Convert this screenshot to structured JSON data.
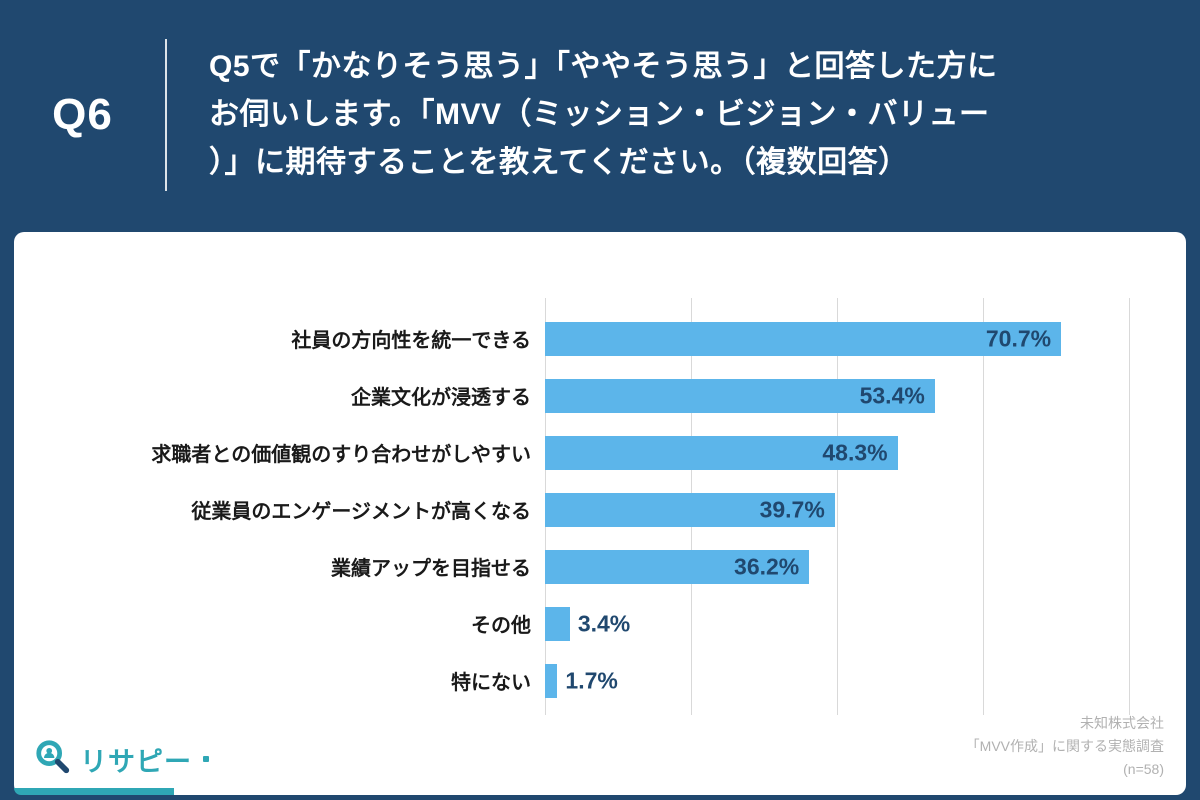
{
  "header": {
    "question_number": "Q6",
    "question_lines": [
      "Q5で「かなりそう思う」「ややそう思う」と回答した方に",
      "お伺いします。「MVV（ミッション・ビジョン・バリュー",
      "）」に期待することを教えてください。（複数回答）"
    ]
  },
  "chart_data": {
    "type": "bar",
    "orientation": "horizontal",
    "title": "",
    "xlabel": "",
    "ylabel": "",
    "categories": [
      "社員の方向性を統一できる",
      "企業文化が浸透する",
      "求職者との価値観のすり合わせがしやすい",
      "従業員のエンゲージメントが高くなる",
      "業績アップを目指せる",
      "その他",
      "特にない"
    ],
    "values": [
      70.7,
      53.4,
      48.3,
      39.7,
      36.2,
      3.4,
      1.7
    ],
    "value_labels": [
      "70.7%",
      "53.4%",
      "48.3%",
      "39.7%",
      "36.2%",
      "3.4%",
      "1.7%"
    ],
    "xlim": [
      0,
      80
    ],
    "gridlines_percent": [
      0,
      20,
      40,
      60,
      80
    ],
    "grid": true,
    "legend": false,
    "bar_color": "#5CB5EA",
    "value_color": "#20486F"
  },
  "footer": {
    "source_lines": [
      "未知株式会社",
      "「MVV作成」に関する実態調査",
      "(n=58)"
    ],
    "logo_text": "リサピー"
  },
  "colors": {
    "background": "#20486F",
    "card": "#FFFFFF",
    "accent_teal": "#2FA7B5",
    "gridline": "#D9D9D9"
  }
}
